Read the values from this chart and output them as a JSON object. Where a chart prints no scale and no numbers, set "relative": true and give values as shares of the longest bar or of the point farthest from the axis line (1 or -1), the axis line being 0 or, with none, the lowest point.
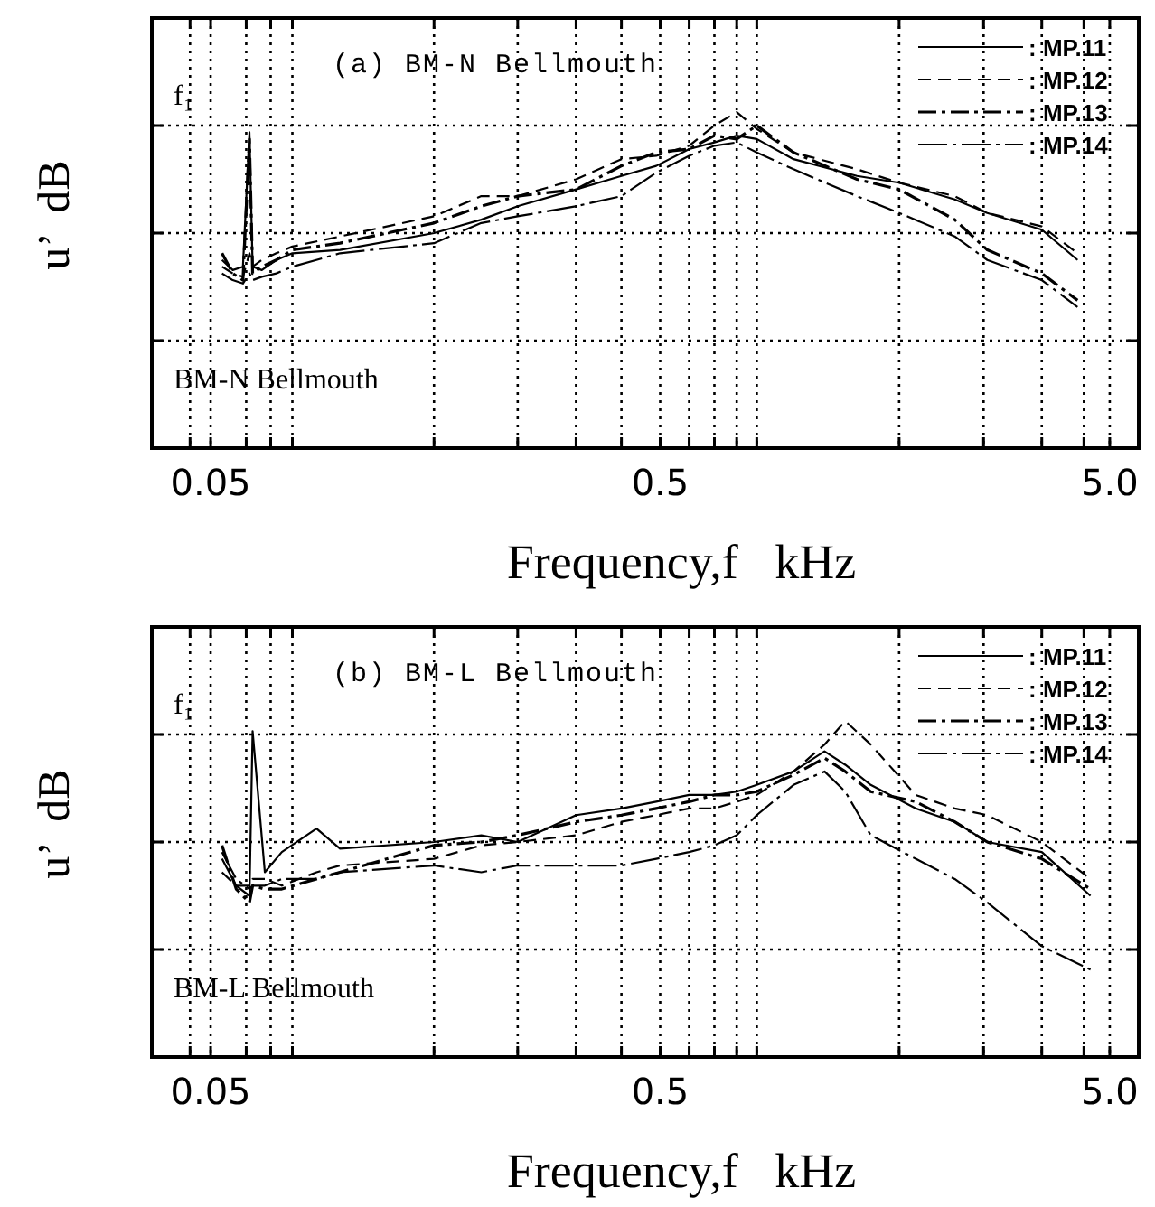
{
  "chart_data": [
    {
      "type": "line",
      "title": "(a)  BM-N  Bellmouth",
      "xlabel": "Frequency,f   kHz",
      "ylabel": "u’  dB",
      "annotations": [
        "f₁",
        "BM-N Bellmouth"
      ],
      "log": "x",
      "relative": true,
      "grid": true,
      "legend": "top right",
      "xlim": [
        0.037,
        5.8
      ],
      "xticks": [
        {
          "value": 0.045,
          "label": null
        },
        {
          "value": 0.05,
          "label": "0.05"
        },
        {
          "value": 0.06,
          "label": null
        },
        {
          "value": 0.068,
          "label": null
        },
        {
          "value": 0.076,
          "label": null
        },
        {
          "value": 0.157,
          "label": null
        },
        {
          "value": 0.241,
          "label": null
        },
        {
          "value": 0.325,
          "label": null
        },
        {
          "value": 0.41,
          "label": null
        },
        0.5,
        {
          "value": 0.58,
          "label": null
        },
        {
          "value": 0.66,
          "label": null
        },
        {
          "value": 0.74,
          "label": null
        },
        {
          "value": 0.82,
          "label": null
        },
        {
          "value": 1.7,
          "label": null
        },
        {
          "value": 2.62,
          "label": null
        },
        {
          "value": 3.53,
          "label": null
        },
        {
          "value": 4.38,
          "label": null
        },
        {
          "value": 5,
          "label": "5.0"
        }
      ],
      "x": [
        0.053,
        0.056,
        0.059,
        0.061,
        0.062,
        0.065,
        0.07,
        0.076,
        0.097,
        0.157,
        0.2,
        0.241,
        0.325,
        0.41,
        0.49,
        0.58,
        0.66,
        0.74,
        0.82,
        0.99,
        1.37,
        1.7,
        2.26,
        2.67,
        3.53,
        4.24
      ],
      "series": [
        {
          "name": ": MP.11",
          "color": "#000000",
          "line_style": "solid",
          "values": [
            0.56,
            0.53,
            0.54,
            0.94,
            0.54,
            0.53,
            0.56,
            0.58,
            0.59,
            0.64,
            0.68,
            0.72,
            0.77,
            0.81,
            0.84,
            0.89,
            0.91,
            0.93,
            0.92,
            0.86,
            0.81,
            0.79,
            0.74,
            0.7,
            0.65,
            0.56
          ]
        },
        {
          "name": ": MP.12",
          "color": "#000000",
          "line_style": "dashed",
          "values": [
            0.54,
            0.52,
            0.51,
            0.58,
            0.54,
            0.56,
            0.58,
            0.6,
            0.63,
            0.69,
            0.75,
            0.75,
            0.8,
            0.86,
            0.87,
            0.9,
            0.96,
            1.0,
            0.95,
            0.88,
            0.83,
            0.79,
            0.75,
            0.7,
            0.66,
            0.58
          ]
        },
        {
          "name": ": MP.13",
          "color": "#000000",
          "line_style": "dashdot",
          "values": [
            0.58,
            0.52,
            0.5,
            0.92,
            0.52,
            0.54,
            0.56,
            0.59,
            0.61,
            0.67,
            0.72,
            0.75,
            0.77,
            0.84,
            0.88,
            0.89,
            0.93,
            0.92,
            0.96,
            0.88,
            0.8,
            0.77,
            0.68,
            0.59,
            0.52,
            0.44
          ]
        },
        {
          "name": ": MP.14",
          "color": "#000000",
          "line_style": "longdashdot",
          "values": [
            0.52,
            0.5,
            0.49,
            0.52,
            0.5,
            0.51,
            0.52,
            0.54,
            0.58,
            0.61,
            0.67,
            0.69,
            0.72,
            0.75,
            0.82,
            0.87,
            0.9,
            0.91,
            0.88,
            0.83,
            0.75,
            0.7,
            0.63,
            0.56,
            0.5,
            0.42
          ]
        }
      ]
    },
    {
      "type": "line",
      "title": "(b)  BM-L  Bellmouth",
      "xlabel": "Frequency,f   kHz",
      "ylabel": "u’  dB",
      "annotations": [
        "f₁",
        "BM-L Bellmouth"
      ],
      "log": "x",
      "relative": true,
      "grid": true,
      "legend": "top right",
      "xlim": [
        0.037,
        5.8
      ],
      "xticks": [
        {
          "value": 0.045,
          "label": null
        },
        {
          "value": 0.05,
          "label": "0.05"
        },
        {
          "value": 0.06,
          "label": null
        },
        {
          "value": 0.068,
          "label": null
        },
        {
          "value": 0.076,
          "label": null
        },
        {
          "value": 0.157,
          "label": null
        },
        {
          "value": 0.241,
          "label": null
        },
        {
          "value": 0.325,
          "label": null
        },
        {
          "value": 0.41,
          "label": null
        },
        0.5,
        {
          "value": 0.58,
          "label": null
        },
        {
          "value": 0.66,
          "label": null
        },
        {
          "value": 0.74,
          "label": null
        },
        {
          "value": 0.82,
          "label": null
        },
        {
          "value": 1.7,
          "label": null
        },
        {
          "value": 2.62,
          "label": null
        },
        {
          "value": 3.53,
          "label": null
        },
        {
          "value": 4.38,
          "label": null
        },
        {
          "value": 5,
          "label": "5.0"
        }
      ],
      "x": [
        0.053,
        0.057,
        0.061,
        0.062,
        0.066,
        0.072,
        0.086,
        0.097,
        0.157,
        0.2,
        0.241,
        0.325,
        0.41,
        0.49,
        0.58,
        0.66,
        0.74,
        0.82,
        0.99,
        1.16,
        1.29,
        1.47,
        1.85,
        2.26,
        2.67,
        3.53,
        4.53
      ],
      "series": [
        {
          "name": ": MP.11",
          "color": "#000000",
          "line_style": "solid",
          "values": [
            0.59,
            0.51,
            0.48,
            0.97,
            0.55,
            0.61,
            0.68,
            0.62,
            0.64,
            0.66,
            0.64,
            0.72,
            0.74,
            0.76,
            0.78,
            0.78,
            0.79,
            0.81,
            0.85,
            0.91,
            0.87,
            0.81,
            0.74,
            0.7,
            0.64,
            0.61,
            0.48
          ]
        },
        {
          "name": ": MP.12",
          "color": "#000000",
          "line_style": "dashed",
          "values": [
            0.55,
            0.51,
            0.51,
            0.53,
            0.53,
            0.51,
            0.55,
            0.57,
            0.59,
            0.63,
            0.64,
            0.66,
            0.7,
            0.72,
            0.74,
            0.74,
            0.76,
            0.78,
            0.85,
            0.93,
            1.0,
            0.93,
            0.78,
            0.74,
            0.72,
            0.64,
            0.53
          ]
        },
        {
          "name": ": MP.13",
          "color": "#000000",
          "line_style": "dashdot",
          "values": [
            0.63,
            0.5,
            0.46,
            0.51,
            0.5,
            0.5,
            0.53,
            0.55,
            0.63,
            0.64,
            0.66,
            0.7,
            0.72,
            0.74,
            0.76,
            0.78,
            0.78,
            0.79,
            0.84,
            0.89,
            0.85,
            0.79,
            0.76,
            0.7,
            0.64,
            0.59,
            0.5
          ]
        },
        {
          "name": ": MP.14",
          "color": "#000000",
          "line_style": "longdashdot",
          "values": [
            0.61,
            0.53,
            0.5,
            0.51,
            0.51,
            0.53,
            0.53,
            0.55,
            0.57,
            0.55,
            0.57,
            0.57,
            0.57,
            0.59,
            0.61,
            0.63,
            0.66,
            0.72,
            0.81,
            0.85,
            0.79,
            0.66,
            0.59,
            0.53,
            0.46,
            0.33,
            0.26
          ]
        }
      ]
    }
  ]
}
